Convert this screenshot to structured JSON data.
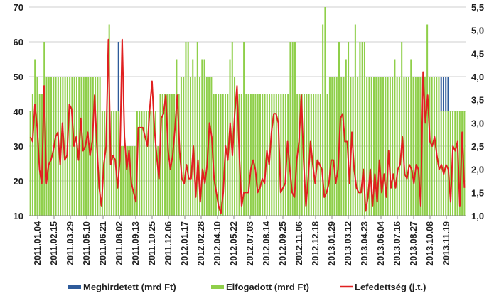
{
  "chart_data": {
    "type": "bar",
    "title": "",
    "xlabel": "",
    "ylabel": "",
    "ylim": [
      10,
      70
    ],
    "y_ticks": [
      "10",
      "20",
      "30",
      "40",
      "50",
      "60",
      "70"
    ],
    "y2lim": [
      1.0,
      5.5
    ],
    "y2_ticks": [
      "1,0",
      "1,5",
      "2,0",
      "2,5",
      "3,0",
      "3,5",
      "4,0",
      "4,5",
      "5,0",
      "5,5"
    ],
    "grid": "horizontal",
    "legend_position": "bottom",
    "x_tick_labels": [
      "2011.01.04",
      "2011.02.15",
      "2011.03.29",
      "2011.05.10",
      "2011.06.21",
      "2011.08.02",
      "2011.09.13",
      "2011.10.25",
      "2011.12.06",
      "2012.01.17",
      "2012.02.28",
      "2012.04.10",
      "2012.05.22",
      "2012.07.03",
      "2012.08.14",
      "2012.09.25",
      "2012.11.06",
      "2012.12.18",
      "2013.01.29",
      "2013.03.12",
      "2013.04.23",
      "2013.06.04",
      "2013.07.16",
      "2013.08.27",
      "2013.10.08",
      "2013.11.19"
    ],
    "colors": {
      "meghirdetett": "#2e5b9a",
      "elfogadott": "#8fcf4a",
      "lefedettseg": "#e02020"
    },
    "series": [
      {
        "name": "Meghirdetett (mrd Ft)",
        "axis": "left",
        "kind": "bar",
        "values": [
          40,
          45,
          45,
          45,
          45,
          45,
          50,
          50,
          50,
          50,
          50,
          50,
          50,
          50,
          50,
          50,
          50,
          50,
          50,
          50,
          50,
          50,
          50,
          50,
          50,
          50,
          50,
          50,
          50,
          50,
          50,
          40,
          40,
          40,
          40,
          40,
          40,
          40,
          60,
          30,
          30,
          30,
          30,
          30,
          30,
          30,
          40,
          40,
          40,
          40,
          40,
          40,
          40,
          40,
          40,
          30,
          45,
          45,
          45,
          45,
          45,
          45,
          45,
          45,
          45,
          50,
          50,
          50,
          50,
          50,
          50,
          50,
          50,
          50,
          50,
          50,
          50,
          50,
          50,
          45,
          45,
          45,
          45,
          45,
          45,
          45,
          45,
          45,
          45,
          45,
          45,
          45,
          45,
          45,
          45,
          45,
          45,
          45,
          45,
          45,
          45,
          45,
          45,
          45,
          45,
          45,
          45,
          45,
          45,
          45,
          45,
          45,
          45,
          45,
          45,
          45,
          45,
          45,
          45,
          45,
          45,
          45,
          45,
          45,
          45,
          45,
          45,
          45,
          45,
          50,
          50,
          50,
          50,
          50,
          50,
          50,
          50,
          50,
          50,
          50,
          50,
          50,
          50,
          50,
          50,
          50,
          50,
          50,
          50,
          50,
          50,
          50,
          50,
          50,
          50,
          50,
          50,
          50,
          50,
          50,
          50,
          50,
          50,
          50,
          50,
          50,
          50,
          50,
          50,
          50,
          50,
          50,
          50,
          50,
          50,
          50,
          50,
          50,
          50,
          50,
          50,
          40,
          40,
          40,
          40,
          40,
          40,
          40,
          40,
          40,
          40,
          40
        ]
      },
      {
        "name": "Elfogadott (mrd Ft)",
        "axis": "left",
        "kind": "bar",
        "values": [
          40,
          45,
          55,
          50,
          45,
          45,
          60,
          50,
          50,
          50,
          50,
          50,
          50,
          50,
          50,
          50,
          50,
          50,
          50,
          50,
          50,
          50,
          50,
          50,
          50,
          50,
          50,
          50,
          50,
          50,
          50,
          40,
          40,
          40,
          65,
          40,
          40,
          40,
          40,
          30,
          30,
          30,
          30,
          30,
          30,
          30,
          40,
          40,
          40,
          40,
          40,
          40,
          40,
          40,
          40,
          30,
          45,
          45,
          45,
          45,
          45,
          45,
          45,
          55,
          45,
          50,
          50,
          60,
          60,
          50,
          55,
          50,
          60,
          50,
          55,
          55,
          50,
          50,
          50,
          45,
          45,
          45,
          45,
          45,
          45,
          45,
          55,
          60,
          50,
          45,
          45,
          45,
          60,
          45,
          45,
          45,
          45,
          45,
          45,
          45,
          45,
          45,
          45,
          45,
          45,
          45,
          45,
          45,
          45,
          45,
          45,
          45,
          60,
          60,
          60,
          45,
          45,
          45,
          45,
          45,
          45,
          45,
          45,
          45,
          45,
          45,
          65,
          70,
          45,
          50,
          50,
          50,
          50,
          60,
          50,
          50,
          55,
          60,
          50,
          50,
          65,
          50,
          60,
          60,
          60,
          50,
          50,
          50,
          50,
          50,
          50,
          50,
          50,
          50,
          50,
          50,
          50,
          55,
          50,
          50,
          60,
          50,
          50,
          50,
          55,
          50,
          50,
          50,
          50,
          50,
          50,
          65,
          50,
          50,
          50,
          50,
          50,
          40,
          40,
          40,
          40,
          40,
          40,
          40,
          40,
          40,
          40,
          40
        ]
      },
      {
        "name": "Lefedettség (j.t.)",
        "axis": "right",
        "kind": "line",
        "values": [
          2.7,
          2.6,
          3.4,
          2.9,
          2.0,
          1.7,
          3.8,
          1.7,
          2.1,
          2.2,
          2.4,
          2.7,
          2.8,
          2.1,
          3.0,
          2.2,
          2.3,
          3.4,
          3.3,
          2.5,
          2.7,
          2.2,
          3.1,
          2.4,
          2.5,
          2.8,
          2.3,
          2.6,
          3.6,
          2.5,
          1.6,
          1.2,
          2.1,
          2.5,
          4.8,
          2.1,
          2.3,
          2.2,
          1.6,
          2.2,
          4.8,
          2.7,
          2.0,
          2.4,
          1.7,
          1.5,
          1.3,
          2.9,
          2.9,
          2.9,
          2.7,
          2.5,
          3.3,
          3.9,
          2.9,
          2.3,
          1.8,
          3.1,
          3.2,
          3.6,
          2.4,
          2.0,
          2.3,
          2.9,
          3.6,
          2.4,
          1.8,
          1.7,
          2.1,
          1.8,
          1.8,
          2.5,
          1.4,
          2.2,
          1.3,
          2.0,
          1.7,
          2.1,
          3.0,
          2.7,
          1.8,
          1.5,
          1.2,
          1.05,
          1.5,
          2.5,
          2.2,
          3.0,
          2.3,
          3.2,
          3.8,
          2.3,
          1.2,
          1.5,
          1.5,
          1.5,
          2.0,
          2.2,
          2.0,
          1.5,
          1.6,
          1.8,
          1.7,
          2.4,
          2.1,
          2.8,
          3.2,
          3.2,
          3.0,
          1.5,
          1.6,
          1.7,
          2.6,
          2.0,
          1.5,
          1.4,
          2.2,
          2.6,
          3.6,
          2.2,
          1.2,
          1.8,
          2.6,
          2.1,
          1.7,
          2.2,
          2.1,
          2.0,
          1.4,
          1.5,
          1.7,
          2.2,
          2.2,
          1.7,
          2.0,
          3.1,
          3.2,
          2.6,
          2.6,
          1.7,
          2.8,
          2.0,
          1.6,
          1.5,
          1.5,
          2.0,
          1.1,
          1.4,
          2.0,
          1.2,
          1.9,
          1.3,
          2.2,
          1.5,
          1.9,
          1.4,
          2.4,
          1.6,
          1.9,
          1.6,
          2.0,
          2.1,
          2.7,
          1.9,
          1.8,
          2.1,
          2.0,
          1.7,
          2.1,
          2.0,
          1.2,
          4.1,
          3.0,
          3.6,
          2.6,
          2.5,
          2.7,
          2.3,
          2.0,
          2.1,
          1.9,
          2.1,
          2.0,
          1.3,
          2.5,
          2.4,
          2.6,
          1.2,
          2.8,
          1.6
        ]
      }
    ]
  }
}
